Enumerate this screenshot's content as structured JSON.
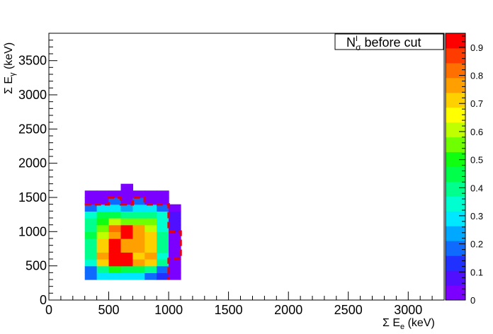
{
  "chart_data": {
    "type": "heatmap",
    "xlabel": "Σ E_e (keV)",
    "ylabel": "Σ E_γ (keV)",
    "xlabel_parts": {
      "prefix": "Σ E",
      "sub": "e",
      "suffix": " (keV)"
    },
    "ylabel_parts": {
      "prefix": "Σ E",
      "sub": "γ",
      "suffix": " (keV)"
    },
    "xlim": [
      0,
      3300
    ],
    "ylim": [
      0,
      3900
    ],
    "x_ticks": [
      "0",
      "500",
      "1000",
      "1500",
      "2000",
      "2500",
      "3000"
    ],
    "y_ticks": [
      "0",
      "500",
      "1000",
      "1500",
      "2000",
      "2500",
      "3000",
      "3500"
    ],
    "legend": {
      "label_prefix": "N",
      "label_sup": "I",
      "label_sub": "σ",
      "label_suffix": " before cut",
      "placement": "top-right"
    },
    "bin_width_x": 100,
    "bin_width_y": 100,
    "bins": [
      {
        "x": 300,
        "y": 300,
        "v": 0.2
      },
      {
        "x": 400,
        "y": 300,
        "v": 0.3
      },
      {
        "x": 500,
        "y": 300,
        "v": 0.3
      },
      {
        "x": 600,
        "y": 300,
        "v": 0.3
      },
      {
        "x": 700,
        "y": 300,
        "v": 0.3
      },
      {
        "x": 800,
        "y": 300,
        "v": 0.2
      },
      {
        "x": 900,
        "y": 300,
        "v": 0.15
      },
      {
        "x": 1000,
        "y": 300,
        "v": 0.05
      },
      {
        "x": 300,
        "y": 400,
        "v": 0.2
      },
      {
        "x": 400,
        "y": 400,
        "v": 0.4
      },
      {
        "x": 500,
        "y": 400,
        "v": 0.5
      },
      {
        "x": 600,
        "y": 400,
        "v": 0.45
      },
      {
        "x": 700,
        "y": 400,
        "v": 0.45
      },
      {
        "x": 800,
        "y": 400,
        "v": 0.4
      },
      {
        "x": 900,
        "y": 400,
        "v": 0.2
      },
      {
        "x": 1000,
        "y": 400,
        "v": 0.05
      },
      {
        "x": 300,
        "y": 500,
        "v": 0.35
      },
      {
        "x": 400,
        "y": 500,
        "v": 0.7
      },
      {
        "x": 500,
        "y": 500,
        "v": 0.9
      },
      {
        "x": 600,
        "y": 500,
        "v": 0.9
      },
      {
        "x": 700,
        "y": 500,
        "v": 0.75
      },
      {
        "x": 800,
        "y": 500,
        "v": 0.7
      },
      {
        "x": 900,
        "y": 500,
        "v": 0.4
      },
      {
        "x": 1000,
        "y": 500,
        "v": 0.05
      },
      {
        "x": 300,
        "y": 600,
        "v": 0.4
      },
      {
        "x": 400,
        "y": 600,
        "v": 0.75
      },
      {
        "x": 500,
        "y": 600,
        "v": 0.9
      },
      {
        "x": 600,
        "y": 600,
        "v": 0.9
      },
      {
        "x": 700,
        "y": 600,
        "v": 0.7
      },
      {
        "x": 800,
        "y": 600,
        "v": 0.75
      },
      {
        "x": 900,
        "y": 600,
        "v": 0.35
      },
      {
        "x": 1000,
        "y": 600,
        "v": 0.05
      },
      {
        "x": 300,
        "y": 700,
        "v": 0.4
      },
      {
        "x": 400,
        "y": 700,
        "v": 0.7
      },
      {
        "x": 500,
        "y": 700,
        "v": 0.9
      },
      {
        "x": 600,
        "y": 700,
        "v": 0.75
      },
      {
        "x": 700,
        "y": 700,
        "v": 0.75
      },
      {
        "x": 800,
        "y": 700,
        "v": 0.7
      },
      {
        "x": 900,
        "y": 700,
        "v": 0.4
      },
      {
        "x": 1000,
        "y": 700,
        "v": 0.05
      },
      {
        "x": 300,
        "y": 800,
        "v": 0.4
      },
      {
        "x": 400,
        "y": 800,
        "v": 0.7
      },
      {
        "x": 500,
        "y": 800,
        "v": 0.9
      },
      {
        "x": 600,
        "y": 800,
        "v": 0.75
      },
      {
        "x": 700,
        "y": 800,
        "v": 0.75
      },
      {
        "x": 800,
        "y": 800,
        "v": 0.7
      },
      {
        "x": 900,
        "y": 800,
        "v": 0.4
      },
      {
        "x": 1000,
        "y": 800,
        "v": 0.05
      },
      {
        "x": 300,
        "y": 900,
        "v": 0.45
      },
      {
        "x": 400,
        "y": 900,
        "v": 0.6
      },
      {
        "x": 500,
        "y": 900,
        "v": 0.75
      },
      {
        "x": 600,
        "y": 900,
        "v": 0.9
      },
      {
        "x": 700,
        "y": 900,
        "v": 0.75
      },
      {
        "x": 800,
        "y": 900,
        "v": 0.7
      },
      {
        "x": 900,
        "y": 900,
        "v": 0.4
      },
      {
        "x": 1000,
        "y": 900,
        "v": 0.05
      },
      {
        "x": 300,
        "y": 1000,
        "v": 0.4
      },
      {
        "x": 400,
        "y": 1000,
        "v": 0.55
      },
      {
        "x": 500,
        "y": 1000,
        "v": 0.8
      },
      {
        "x": 600,
        "y": 1000,
        "v": 0.9
      },
      {
        "x": 700,
        "y": 1000,
        "v": 0.75
      },
      {
        "x": 800,
        "y": 1000,
        "v": 0.6
      },
      {
        "x": 900,
        "y": 1000,
        "v": 0.35
      },
      {
        "x": 1000,
        "y": 1000,
        "v": 0.1
      },
      {
        "x": 300,
        "y": 1100,
        "v": 0.4
      },
      {
        "x": 400,
        "y": 1100,
        "v": 0.5
      },
      {
        "x": 500,
        "y": 1100,
        "v": 0.6
      },
      {
        "x": 600,
        "y": 1100,
        "v": 0.55
      },
      {
        "x": 700,
        "y": 1100,
        "v": 0.55
      },
      {
        "x": 800,
        "y": 1100,
        "v": 0.55
      },
      {
        "x": 900,
        "y": 1100,
        "v": 0.35
      },
      {
        "x": 1000,
        "y": 1100,
        "v": 0.1
      },
      {
        "x": 300,
        "y": 1200,
        "v": 0.35
      },
      {
        "x": 400,
        "y": 1200,
        "v": 0.45
      },
      {
        "x": 500,
        "y": 1200,
        "v": 0.45
      },
      {
        "x": 600,
        "y": 1200,
        "v": 0.4
      },
      {
        "x": 700,
        "y": 1200,
        "v": 0.4
      },
      {
        "x": 800,
        "y": 1200,
        "v": 0.4
      },
      {
        "x": 900,
        "y": 1200,
        "v": 0.35
      },
      {
        "x": 1000,
        "y": 1200,
        "v": 0.1
      },
      {
        "x": 300,
        "y": 1300,
        "v": 0.2
      },
      {
        "x": 400,
        "y": 1300,
        "v": 0.3
      },
      {
        "x": 500,
        "y": 1300,
        "v": 0.3
      },
      {
        "x": 600,
        "y": 1300,
        "v": 0.25
      },
      {
        "x": 700,
        "y": 1300,
        "v": 0.3
      },
      {
        "x": 800,
        "y": 1300,
        "v": 0.3
      },
      {
        "x": 900,
        "y": 1300,
        "v": 0.2
      },
      {
        "x": 1000,
        "y": 1300,
        "v": 0.05
      },
      {
        "x": 300,
        "y": 1400,
        "v": 0.05
      },
      {
        "x": 400,
        "y": 1400,
        "v": 0.05
      },
      {
        "x": 500,
        "y": 1400,
        "v": 0.2
      },
      {
        "x": 600,
        "y": 1400,
        "v": 0.05
      },
      {
        "x": 700,
        "y": 1400,
        "v": 0.2
      },
      {
        "x": 800,
        "y": 1400,
        "v": 0.05
      },
      {
        "x": 900,
        "y": 1400,
        "v": 0.05
      },
      {
        "x": 300,
        "y": 1500,
        "v": 0.05
      },
      {
        "x": 400,
        "y": 1500,
        "v": 0.05
      },
      {
        "x": 500,
        "y": 1500,
        "v": 0.05
      },
      {
        "x": 600,
        "y": 1500,
        "v": 0.05
      },
      {
        "x": 700,
        "y": 1500,
        "v": 0.05
      },
      {
        "x": 800,
        "y": 1500,
        "v": 0.05
      },
      {
        "x": 900,
        "y": 1500,
        "v": 0.05
      },
      {
        "x": 600,
        "y": 1600,
        "v": 0.05
      }
    ],
    "cut_contour": [
      [
        300,
        1400
      ],
      [
        500,
        1400
      ],
      [
        500,
        1500
      ],
      [
        600,
        1500
      ],
      [
        600,
        1400
      ],
      [
        700,
        1400
      ],
      [
        700,
        1500
      ],
      [
        800,
        1500
      ],
      [
        800,
        1400
      ],
      [
        1000,
        1400
      ],
      [
        1000,
        1000
      ],
      [
        1100,
        1000
      ],
      [
        1100,
        600
      ],
      [
        1000,
        600
      ],
      [
        1000,
        300
      ]
    ],
    "colorbar": {
      "min": 0,
      "max": 0.95,
      "labels": [
        "0",
        "0.1",
        "0.2",
        "0.3",
        "0.4",
        "0.5",
        "0.6",
        "0.7",
        "0.8",
        "0.9"
      ],
      "colors": [
        "#7b00ff",
        "#5010ff",
        "#2030ff",
        "#0f6bff",
        "#00a8ff",
        "#00e8ff",
        "#00ffd0",
        "#00ff8c",
        "#00ff4a",
        "#10ff10",
        "#70ff00",
        "#bfff00",
        "#ffff00",
        "#ffd000",
        "#ffa000",
        "#ff7000",
        "#ff3c00",
        "#ff0000"
      ],
      "cut_color": "#e0001a"
    }
  }
}
